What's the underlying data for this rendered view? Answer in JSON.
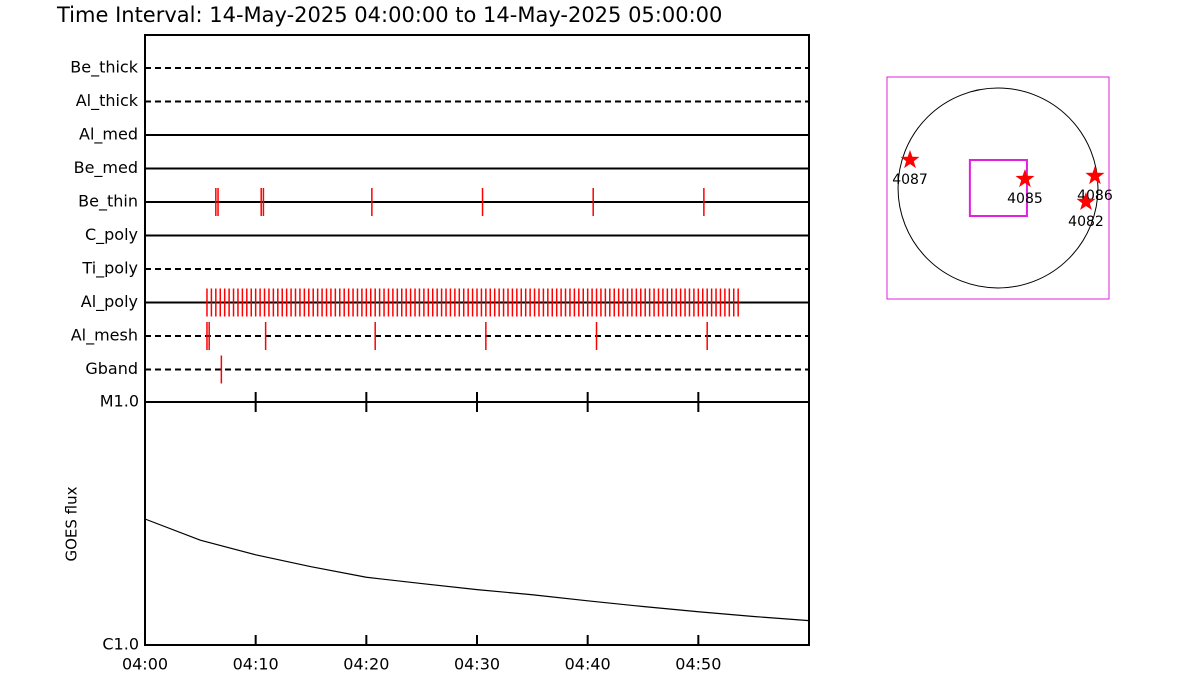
{
  "chart_data": [
    {
      "type": "timeline",
      "title": "Time Interval: 14-May-2025 04:00:00 to 14-May-2025 05:00:00",
      "xlim": [
        0,
        60
      ],
      "event_color": "#ff0000",
      "rows": [
        {
          "name": "Be_thick",
          "style": "dashed",
          "events": []
        },
        {
          "name": "Al_thick",
          "style": "dashed",
          "events": []
        },
        {
          "name": "Al_med",
          "style": "solid",
          "events": []
        },
        {
          "name": "Be_med",
          "style": "solid",
          "events": []
        },
        {
          "name": "Be_thin",
          "style": "solid",
          "events": [
            6.4,
            6.6,
            10.5,
            10.7,
            20.5,
            30.5,
            40.5,
            50.5
          ]
        },
        {
          "name": "C_poly",
          "style": "solid",
          "events": []
        },
        {
          "name": "Ti_poly",
          "style": "dashed",
          "events": []
        },
        {
          "name": "Al_poly",
          "style": "solid",
          "events": [
            5.6,
            6,
            6.4,
            6.8,
            7.2,
            7.6,
            8,
            8.4,
            8.8,
            9.2,
            9.6,
            10,
            10.4,
            10.8,
            11.2,
            11.6,
            12,
            12.4,
            12.8,
            13.2,
            13.6,
            14,
            14.4,
            14.8,
            15.2,
            15.6,
            16,
            16.4,
            16.8,
            17.2,
            17.6,
            18,
            18.4,
            18.8,
            19.2,
            19.6,
            20,
            20.4,
            20.8,
            21.2,
            21.6,
            22,
            22.4,
            22.8,
            23.2,
            23.6,
            24,
            24.4,
            24.8,
            25.2,
            25.6,
            26,
            26.4,
            26.8,
            27.2,
            27.6,
            28,
            28.4,
            28.8,
            29.2,
            29.6,
            30,
            30.4,
            30.8,
            31.2,
            31.6,
            32,
            32.4,
            32.8,
            33.2,
            33.6,
            34,
            34.4,
            34.8,
            35.2,
            35.6,
            36,
            36.4,
            36.8,
            37.2,
            37.6,
            38,
            38.4,
            38.8,
            39.2,
            39.6,
            40,
            40.4,
            40.8,
            41.2,
            41.6,
            42,
            42.4,
            42.8,
            43.2,
            43.6,
            44,
            44.4,
            44.8,
            45.2,
            45.6,
            46,
            46.4,
            46.8,
            47.2,
            47.6,
            48,
            48.4,
            48.8,
            49.2,
            49.6,
            50,
            50.4,
            50.8,
            51.2,
            51.6,
            52,
            52.4,
            52.8,
            53.2,
            53.6
          ]
        },
        {
          "name": "Al_mesh",
          "style": "dashed",
          "events": [
            5.6,
            5.8,
            10.9,
            20.8,
            30.8,
            40.8,
            50.8
          ]
        },
        {
          "name": "Gband",
          "style": "dashed",
          "events": [
            6.9
          ]
        }
      ]
    },
    {
      "type": "line",
      "y_label": "GOES flux",
      "log_scale": true,
      "color": "#000000",
      "xlim": [
        0,
        60
      ],
      "xticks": [
        {
          "value": 0,
          "label": "04:00"
        },
        {
          "value": 10,
          "label": "04:10"
        },
        {
          "value": 20,
          "label": "04:20"
        },
        {
          "value": 30,
          "label": "04:30"
        },
        {
          "value": 40,
          "label": "04:40"
        },
        {
          "value": 50,
          "label": "04:50"
        }
      ],
      "ylim": [
        1e-06,
        1e-05
      ],
      "yticks": [
        {
          "value": 1e-06,
          "label": "C1.0"
        },
        {
          "value": 1e-05,
          "label": "M1.0"
        }
      ],
      "x": [
        0,
        5,
        10,
        15,
        20,
        25,
        30,
        35,
        40,
        45,
        50,
        55,
        60
      ],
      "values": [
        3.3e-06,
        2.7e-06,
        2.35e-06,
        2.1e-06,
        1.9e-06,
        1.79e-06,
        1.69e-06,
        1.61e-06,
        1.52e-06,
        1.44e-06,
        1.37e-06,
        1.31e-06,
        1.26e-06
      ]
    },
    {
      "type": "map",
      "xlim": [
        -1066,
        1066
      ],
      "ylim": [
        -1066,
        1066
      ],
      "disk_radius": 960,
      "frame_color": "#e020e0",
      "star_color": "#ff0000",
      "fov": {
        "x": [
          -270,
          278
        ],
        "y": [
          -269,
          269
        ]
      },
      "regions": [
        {
          "name": "4087",
          "x": -845,
          "y": 269
        },
        {
          "name": "4085",
          "x": 259,
          "y": 86
        },
        {
          "name": "4086",
          "x": 931,
          "y": 115
        },
        {
          "name": "4082",
          "x": 845,
          "y": -134
        }
      ]
    }
  ]
}
